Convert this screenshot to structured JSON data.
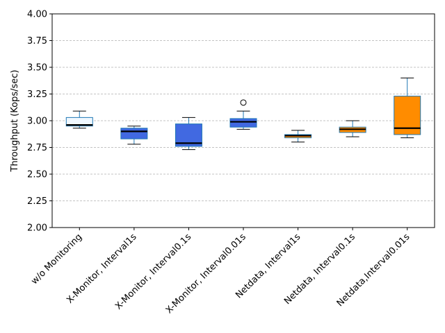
{
  "chart_data": {
    "type": "box",
    "title": "",
    "xlabel": "",
    "ylabel": "Throughput (Kops/sec)",
    "ylim": [
      2.0,
      4.0
    ],
    "yticks": [
      "2.00",
      "2.25",
      "2.50",
      "2.75",
      "3.00",
      "3.25",
      "3.50",
      "3.75",
      "4.00"
    ],
    "grid": "horizontal-dashed",
    "categories": [
      "w/o Monitoring",
      "X-Monitor, Interval1s",
      "X-Monitor, Interval0.1s",
      "X-Monitor, Interval0.01s",
      "Netdata, Interval1s",
      "Netdata, Interval0.1s",
      "Netdata,Interval0.01s"
    ],
    "boxes": [
      {
        "whisker_low": 2.93,
        "q1": 2.95,
        "median": 2.96,
        "q3": 3.03,
        "whisker_high": 3.09,
        "outliers": [],
        "color": "#f0f8ff"
      },
      {
        "whisker_low": 2.78,
        "q1": 2.83,
        "median": 2.9,
        "q3": 2.93,
        "whisker_high": 2.95,
        "outliers": [],
        "color": "#4169e1"
      },
      {
        "whisker_low": 2.73,
        "q1": 2.76,
        "median": 2.79,
        "q3": 2.97,
        "whisker_high": 3.03,
        "outliers": [],
        "color": "#4169e1"
      },
      {
        "whisker_low": 2.92,
        "q1": 2.94,
        "median": 2.99,
        "q3": 3.02,
        "whisker_high": 3.09,
        "outliers": [
          3.17
        ],
        "color": "#4169e1"
      },
      {
        "whisker_low": 2.8,
        "q1": 2.84,
        "median": 2.86,
        "q3": 2.87,
        "whisker_high": 2.91,
        "outliers": [],
        "color": "#ff8c00"
      },
      {
        "whisker_low": 2.85,
        "q1": 2.89,
        "median": 2.92,
        "q3": 2.94,
        "whisker_high": 3.0,
        "outliers": [],
        "color": "#ff8c00"
      },
      {
        "whisker_low": 2.84,
        "q1": 2.87,
        "median": 2.93,
        "q3": 3.23,
        "whisker_high": 3.4,
        "outliers": [],
        "color": "#ff8c00"
      }
    ]
  }
}
